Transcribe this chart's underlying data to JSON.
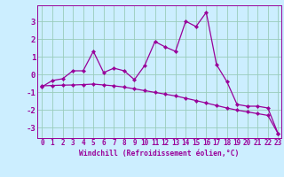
{
  "xlabel": "Windchill (Refroidissement éolien,°C)",
  "background_color": "#cceeff",
  "line_color": "#990099",
  "grid_color": "#99ccbb",
  "xlim": [
    -0.5,
    23.3
  ],
  "ylim": [
    -3.6,
    3.9
  ],
  "x_hours": [
    0,
    1,
    2,
    3,
    4,
    5,
    6,
    7,
    8,
    9,
    10,
    11,
    12,
    13,
    14,
    15,
    16,
    17,
    18,
    19,
    20,
    21,
    22,
    23
  ],
  "y_windchill": [
    -0.7,
    -0.35,
    -0.25,
    0.2,
    0.2,
    1.3,
    0.1,
    0.35,
    0.2,
    -0.3,
    0.5,
    1.85,
    1.55,
    1.3,
    3.0,
    2.7,
    3.5,
    0.55,
    -0.4,
    -1.7,
    -1.8,
    -1.8,
    -1.9,
    -3.35
  ],
  "y_linear": [
    -0.65,
    -0.63,
    -0.61,
    -0.6,
    -0.58,
    -0.55,
    -0.6,
    -0.65,
    -0.72,
    -0.82,
    -0.92,
    -1.02,
    -1.12,
    -1.22,
    -1.35,
    -1.48,
    -1.62,
    -1.76,
    -1.9,
    -2.02,
    -2.12,
    -2.22,
    -2.32,
    -3.35
  ],
  "yticks": [
    -3,
    -2,
    -1,
    0,
    1,
    2,
    3
  ],
  "xtick_labels": [
    "0",
    "1",
    "2",
    "3",
    "4",
    "5",
    "6",
    "7",
    "8",
    "9",
    "10",
    "11",
    "12",
    "13",
    "14",
    "15",
    "16",
    "17",
    "18",
    "19",
    "20",
    "21",
    "22",
    "23"
  ],
  "tick_fontsize": 5.5,
  "ytick_fontsize": 6.5,
  "xlabel_fontsize": 5.8
}
